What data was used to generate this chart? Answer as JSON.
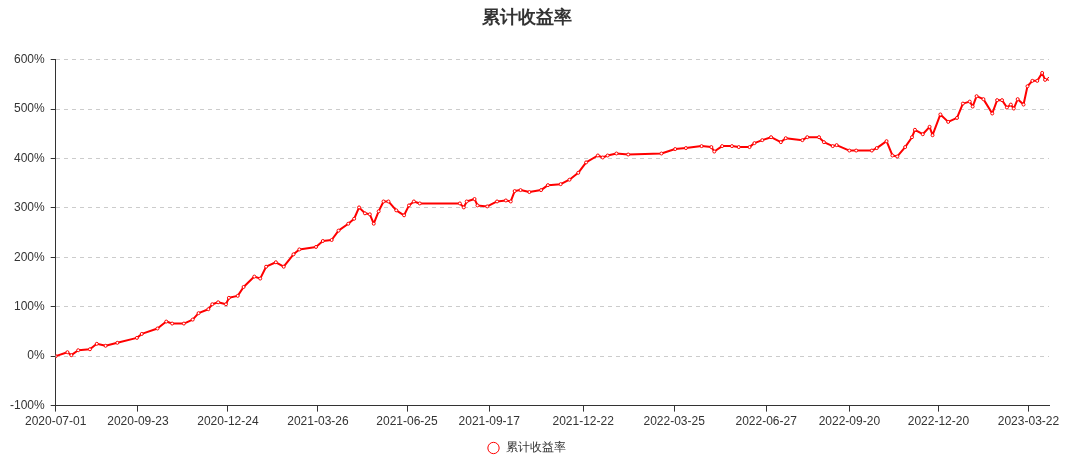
{
  "chart_data": {
    "type": "line",
    "title": "累计收益率",
    "legend": "bottom",
    "grid": "y",
    "marker": "circle",
    "line_style": "solid",
    "xlim": [
      "2020-07-01",
      "2023-04-12"
    ],
    "xticks": [
      "2020-07-01",
      "2020-09-23",
      "2020-12-24",
      "2021-03-26",
      "2021-06-25",
      "2021-09-17",
      "2021-12-22",
      "2022-03-25",
      "2022-06-27",
      "2022-09-20",
      "2022-12-20",
      "2023-03-22"
    ],
    "ylim": [
      -100,
      600
    ],
    "yticks": [
      {
        "value": -100,
        "label": "-100%"
      },
      {
        "value": 0,
        "label": "0%"
      },
      {
        "value": 100,
        "label": "100%"
      },
      {
        "value": 200,
        "label": "200%"
      },
      {
        "value": 300,
        "label": "300%"
      },
      {
        "value": 400,
        "label": "400%"
      },
      {
        "value": 500,
        "label": "500%"
      },
      {
        "value": 600,
        "label": "600%"
      }
    ],
    "x": [
      "2020-07-01",
      "2020-07-13",
      "2020-07-17",
      "2020-07-24",
      "2020-08-05",
      "2020-08-12",
      "2020-08-21",
      "2020-09-02",
      "2020-09-22",
      "2020-09-27",
      "2020-10-13",
      "2020-10-22",
      "2020-10-28",
      "2020-11-09",
      "2020-11-18",
      "2020-11-24",
      "2020-12-04",
      "2020-12-08",
      "2020-12-14",
      "2020-12-22",
      "2020-12-25",
      "2021-01-03",
      "2021-01-09",
      "2021-01-20",
      "2021-01-26",
      "2021-02-01",
      "2021-02-11",
      "2021-02-19",
      "2021-03-01",
      "2021-03-07",
      "2021-03-24",
      "2021-03-31",
      "2021-04-09",
      "2021-04-16",
      "2021-04-26",
      "2021-05-02",
      "2021-05-07",
      "2021-05-13",
      "2021-05-18",
      "2021-05-22",
      "2021-05-27",
      "2021-06-01",
      "2021-06-06",
      "2021-06-14",
      "2021-06-22",
      "2021-06-27",
      "2021-07-02",
      "2021-07-08",
      "2021-08-18",
      "2021-08-22",
      "2021-08-25",
      "2021-09-02",
      "2021-09-05",
      "2021-09-15",
      "2021-09-25",
      "2021-10-04",
      "2021-10-09",
      "2021-10-13",
      "2021-10-19",
      "2021-10-28",
      "2021-11-09",
      "2021-11-16",
      "2021-11-29",
      "2021-12-08",
      "2021-12-17",
      "2021-12-25",
      "2022-01-06",
      "2022-01-11",
      "2022-01-16",
      "2022-01-25",
      "2022-02-06",
      "2022-03-12",
      "2022-03-26",
      "2022-04-06",
      "2022-04-22",
      "2022-05-02",
      "2022-05-05",
      "2022-05-13",
      "2022-05-23",
      "2022-05-30",
      "2022-06-10",
      "2022-06-15",
      "2022-06-23",
      "2022-07-02",
      "2022-07-12",
      "2022-07-17",
      "2022-08-03",
      "2022-08-08",
      "2022-08-20",
      "2022-08-25",
      "2022-09-03",
      "2022-09-07",
      "2022-09-20",
      "2022-09-27",
      "2022-10-13",
      "2022-10-18",
      "2022-10-28",
      "2022-11-03",
      "2022-11-08",
      "2022-11-16",
      "2022-11-23",
      "2022-11-26",
      "2022-12-04",
      "2022-12-11",
      "2022-12-14",
      "2022-12-22",
      "2022-12-30",
      "2023-01-08",
      "2023-01-14",
      "2023-01-21",
      "2023-01-24",
      "2023-01-28",
      "2023-02-04",
      "2023-02-13",
      "2023-02-18",
      "2023-02-23",
      "2023-02-28",
      "2023-03-04",
      "2023-03-07",
      "2023-03-11",
      "2023-03-17",
      "2023-03-21",
      "2023-03-26",
      "2023-03-31",
      "2023-04-05",
      "2023-04-08",
      "2023-04-12"
    ],
    "series": [
      {
        "name": "累计收益率",
        "color": "#ff0000",
        "values": [
          0,
          8,
          2,
          12,
          14,
          25,
          21,
          27,
          37,
          45,
          56,
          70,
          66,
          66,
          74,
          87,
          95,
          105,
          109,
          105,
          118,
          122,
          140,
          161,
          157,
          181,
          190,
          181,
          206,
          216,
          221,
          233,
          235,
          254,
          268,
          278,
          301,
          289,
          287,
          268,
          293,
          313,
          313,
          295,
          285,
          305,
          313,
          309,
          309,
          301,
          313,
          318,
          305,
          303,
          313,
          315,
          313,
          334,
          336,
          332,
          336,
          346,
          348,
          357,
          371,
          392,
          406,
          402,
          406,
          410,
          408,
          410,
          419,
          421,
          425,
          423,
          414,
          425,
          425,
          423,
          423,
          431,
          437,
          443,
          433,
          441,
          437,
          443,
          443,
          433,
          425,
          427,
          416,
          416,
          416,
          421,
          435,
          406,
          404,
          423,
          443,
          458,
          449,
          464,
          447,
          489,
          474,
          482,
          511,
          515,
          505,
          526,
          520,
          491,
          518,
          518,
          503,
          509,
          501,
          520,
          509,
          546,
          557,
          557,
          573,
          559,
          561
        ]
      }
    ]
  }
}
